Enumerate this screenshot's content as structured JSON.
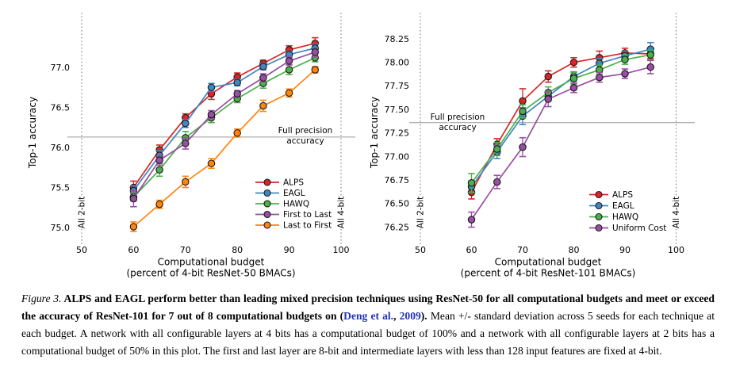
{
  "figure": {
    "caption": {
      "label": "Figure 3.",
      "parts": {
        "bold_intro": " ALPS and EAGL perform better than leading mixed precision techniques using ResNet-50 for all computational budgets and meet or exceed the accuracy of ResNet-101 for 7 out of 8 computational budgets on (",
        "cite_authors": "Deng et al.",
        "cite_sep": ", ",
        "cite_year": "2009",
        "bold_close": ").",
        "body": " Mean +/- standard deviation across 5 seeds for each technique at each budget. A network with all configurable layers at 4 bits has a computational budget of 100% and a network with all configurable layers at 2 bits has a computational budget of 50% in this plot. The first and last layer are 8-bit and intermediate layers with less than 128 input features are fixed at 4-bit."
      },
      "link_color": "#2233bb"
    }
  },
  "chart_data": [
    {
      "type": "line",
      "name": "resnet50",
      "title": "",
      "xlabel": [
        "Computational budget",
        "(percent of 4-bit ResNet-50 BMACs)"
      ],
      "ylabel": "Top-1 accuracy",
      "x": [
        60,
        65,
        70,
        75,
        80,
        85,
        90,
        95
      ],
      "xticks": [
        50,
        60,
        70,
        80,
        90,
        100
      ],
      "yticks": [
        "75.0",
        "75.5",
        "76.0",
        "76.5",
        "77.0"
      ],
      "xlim": [
        47,
        103
      ],
      "ylim": [
        74.8,
        77.65
      ],
      "grid": false,
      "legend_position": "lower right",
      "reference_line": {
        "value": 76.13,
        "label": [
          "Full precision",
          "accuracy"
        ]
      },
      "boundary_lines": [
        {
          "x": 50,
          "label": "All 2-bit"
        },
        {
          "x": 100,
          "label": "All 4-bit"
        }
      ],
      "series": [
        {
          "name": "ALPS",
          "color": "#d62728",
          "values": [
            75.5,
            75.97,
            76.37,
            76.67,
            76.88,
            77.05,
            77.22,
            77.3
          ],
          "errors": [
            0.08,
            0.06,
            0.05,
            0.07,
            0.05,
            0.04,
            0.05,
            0.07
          ]
        },
        {
          "name": "EAGL",
          "color": "#4186c0",
          "values": [
            75.46,
            75.9,
            76.3,
            76.75,
            76.81,
            77.01,
            77.16,
            77.24
          ],
          "errors": [
            0.06,
            0.06,
            0.05,
            0.05,
            0.04,
            0.04,
            0.04,
            0.05
          ]
        },
        {
          "name": "HAWQ",
          "color": "#4daf4a",
          "values": [
            75.38,
            75.72,
            76.12,
            76.37,
            76.61,
            76.8,
            76.97,
            77.12
          ],
          "errors": [
            0.05,
            0.08,
            0.08,
            0.06,
            0.05,
            0.06,
            0.06,
            0.05
          ]
        },
        {
          "name": "First to Last",
          "color": "#984ea3",
          "values": [
            75.36,
            75.84,
            76.05,
            76.41,
            76.67,
            76.87,
            77.08,
            77.19
          ],
          "errors": [
            0.1,
            0.06,
            0.07,
            0.05,
            0.04,
            0.05,
            0.05,
            0.06
          ]
        },
        {
          "name": "Last to First",
          "color": "#ff850e",
          "values": [
            75.01,
            75.29,
            75.57,
            75.8,
            76.18,
            76.52,
            76.68,
            76.97
          ],
          "errors": [
            0.06,
            0.05,
            0.07,
            0.06,
            0.05,
            0.07,
            0.05,
            0.04
          ]
        }
      ]
    },
    {
      "type": "line",
      "name": "resnet101",
      "title": "",
      "xlabel": [
        "Computational budget",
        "(percent of 4-bit ResNet-101 BMACs)"
      ],
      "ylabel": "Top-1 accuracy",
      "x": [
        60,
        65,
        70,
        75,
        80,
        85,
        90,
        95
      ],
      "xticks": [
        50,
        60,
        70,
        80,
        90,
        100
      ],
      "yticks": [
        "76.25",
        "76.50",
        "76.75",
        "77.00",
        "77.25",
        "77.50",
        "77.75",
        "78.00",
        "78.25"
      ],
      "xlim": [
        47,
        103
      ],
      "ylim": [
        76.05,
        78.5
      ],
      "grid": false,
      "legend_position": "lower right",
      "reference_line": {
        "value": 77.36,
        "label": [
          "Full precision",
          "accuracy"
        ]
      },
      "boundary_lines": [
        {
          "x": 50,
          "label": "All 2-bit"
        },
        {
          "x": 100,
          "label": "All 4-bit"
        }
      ],
      "series": [
        {
          "name": "ALPS",
          "color": "#d62728",
          "values": [
            76.62,
            77.13,
            77.59,
            77.85,
            78.0,
            78.05,
            78.1,
            78.09
          ],
          "errors": [
            0.07,
            0.06,
            0.13,
            0.06,
            0.05,
            0.07,
            0.05,
            0.05
          ]
        },
        {
          "name": "EAGL",
          "color": "#4186c0",
          "values": [
            76.68,
            77.05,
            77.43,
            77.64,
            77.85,
            77.99,
            78.07,
            78.14
          ],
          "errors": [
            0.06,
            0.07,
            0.09,
            0.05,
            0.05,
            0.05,
            0.05,
            0.07
          ]
        },
        {
          "name": "HAWQ",
          "color": "#4daf4a",
          "values": [
            76.72,
            77.08,
            77.48,
            77.68,
            77.83,
            77.92,
            78.03,
            78.08
          ],
          "errors": [
            0.1,
            0.07,
            0.07,
            0.06,
            0.06,
            0.05,
            0.05,
            0.05
          ]
        },
        {
          "name": "Uniform Cost",
          "color": "#984ea3",
          "values": [
            76.33,
            76.73,
            77.1,
            77.61,
            77.73,
            77.84,
            77.88,
            77.95
          ],
          "errors": [
            0.08,
            0.07,
            0.1,
            0.08,
            0.05,
            0.05,
            0.05,
            0.07
          ]
        }
      ]
    }
  ]
}
